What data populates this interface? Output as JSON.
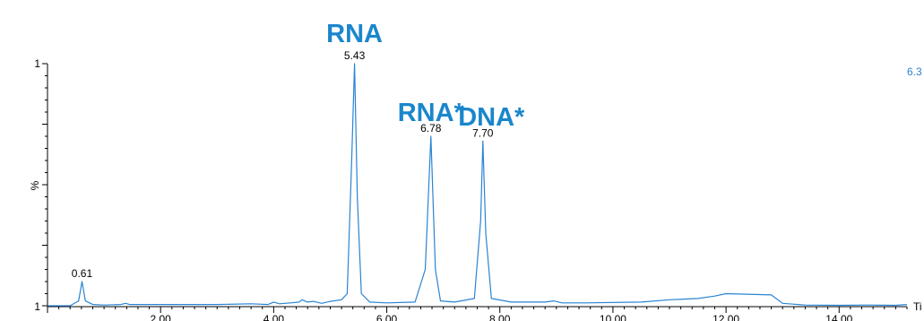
{
  "chart_data": {
    "type": "line",
    "xlabel": "Ti",
    "ylabel": "%",
    "y_tick_labels": {
      "bottom": "1",
      "top": "1"
    },
    "corner_label": "6.3",
    "xlim": [
      0,
      15.2
    ],
    "x_ticks": [
      2.0,
      4.0,
      6.0,
      8.0,
      10.0,
      12.0,
      14.0
    ],
    "x_tick_labels": [
      "2.00",
      "4.00",
      "6.00",
      "8.00",
      "10.00",
      "12.00",
      "14.00"
    ],
    "ylim": [
      0,
      100
    ],
    "grid": false,
    "colors": {
      "trace": "#2a84d2",
      "annotation": "#1a86cc",
      "axis": "#000000"
    },
    "series": [
      {
        "x": [
          0.0,
          0.4,
          0.55,
          0.61,
          0.67,
          0.8,
          1.0,
          1.3,
          1.38,
          1.45,
          1.8,
          2.5,
          3.0,
          3.6,
          3.9,
          4.0,
          4.1,
          4.3,
          4.45,
          4.5,
          4.6,
          4.7,
          4.85,
          5.0,
          5.2,
          5.3,
          5.38,
          5.43,
          5.48,
          5.55,
          5.7,
          6.0,
          6.5,
          6.68,
          6.78,
          6.86,
          6.95,
          7.2,
          7.55,
          7.66,
          7.7,
          7.75,
          7.85,
          8.2,
          8.8,
          8.95,
          9.1,
          9.5,
          10.5,
          11.0,
          11.5,
          11.8,
          12.0,
          12.8,
          13.0,
          13.4,
          14.0,
          14.5,
          15.0,
          15.2
        ],
        "y": [
          0,
          0,
          2,
          10,
          2,
          0.5,
          0.3,
          0.5,
          1,
          0.5,
          0.5,
          0.5,
          0.5,
          0.8,
          0.5,
          1.5,
          0.8,
          1.2,
          1.5,
          2.5,
          1.5,
          1.8,
          1.0,
          1.8,
          2.5,
          5,
          60,
          100,
          45,
          5,
          1.5,
          1.2,
          1.5,
          15,
          70,
          15,
          2,
          1.5,
          3,
          35,
          68,
          30,
          3,
          1.5,
          1.5,
          2,
          1.2,
          1.2,
          1.5,
          2.5,
          3,
          4,
          5,
          4.5,
          1.0,
          0.3,
          0.2,
          0.3,
          0.2,
          0.5
        ]
      }
    ],
    "peak_labels": [
      {
        "x": 0.61,
        "y": 10,
        "text": "0.61"
      },
      {
        "x": 5.43,
        "y": 100,
        "text": "5.43"
      },
      {
        "x": 6.78,
        "y": 70,
        "text": "6.78"
      },
      {
        "x": 7.7,
        "y": 68,
        "text": "7.70"
      }
    ],
    "annotations": [
      {
        "text": "RNA",
        "x": 5.43
      },
      {
        "text": "RNA*",
        "x": 6.78
      },
      {
        "text": "DNA*",
        "x": 7.85
      }
    ]
  }
}
